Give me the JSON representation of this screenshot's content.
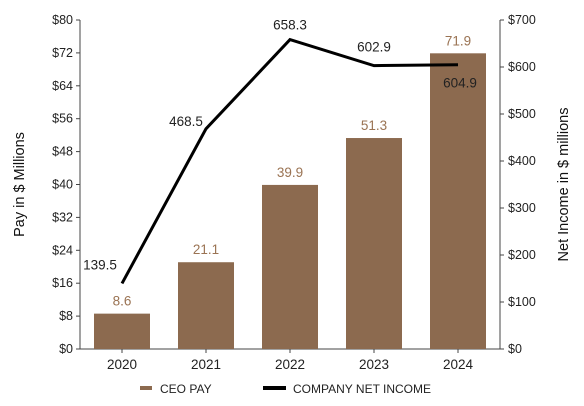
{
  "chart_data": {
    "type": "bar",
    "categories": [
      "2020",
      "2021",
      "2022",
      "2023",
      "2024"
    ],
    "series": [
      {
        "name": "CEO PAY",
        "type": "bar",
        "axis": "left",
        "values": [
          8.6,
          21.1,
          39.9,
          51.3,
          71.9
        ],
        "labels": [
          "8.6",
          "21.1",
          "39.9",
          "51.3",
          "71.9"
        ],
        "color": "#8c6a4f",
        "label_color": "#9a7353"
      },
      {
        "name": "COMPANY NET INCOME",
        "type": "line",
        "axis": "right",
        "values": [
          139.5,
          468.5,
          658.3,
          602.9,
          604.9
        ],
        "labels": [
          "139.5",
          "468.5",
          "658.3",
          "602.9",
          "604.9"
        ],
        "color": "#000000"
      }
    ],
    "ylabel": "Pay in $ Millions",
    "y2label": "Net Income in $ millions",
    "ylim": [
      0,
      80
    ],
    "y2lim": [
      0,
      700
    ],
    "yticks": [
      "$0",
      "$8",
      "$16",
      "$24",
      "$32",
      "$40",
      "$48",
      "$56",
      "$64",
      "$72",
      "$80"
    ],
    "y2ticks": [
      "$0",
      "$100",
      "$200",
      "$300",
      "$400",
      "$500",
      "$600",
      "$700"
    ],
    "grid": false,
    "legend_position": "bottom"
  }
}
